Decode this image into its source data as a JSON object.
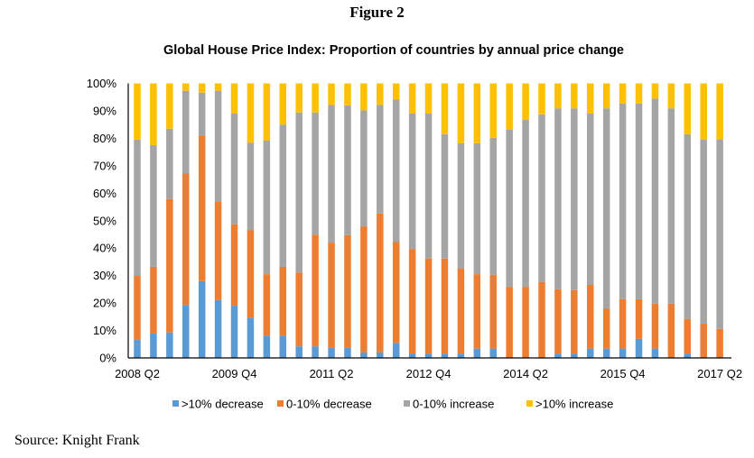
{
  "figure_label": "Figure 2",
  "source": "Source: Knight Frank",
  "chart_data": {
    "type": "bar",
    "stacked": true,
    "percent_stacked": true,
    "title": "Global House Price Index: Proportion of countries by annual price change",
    "xlabel": "",
    "ylabel": "",
    "ylim": [
      0,
      100
    ],
    "yticks": [
      "0%",
      "10%",
      "20%",
      "30%",
      "40%",
      "50%",
      "60%",
      "70%",
      "80%",
      "90%",
      "100%"
    ],
    "xtick_labels": [
      "2008 Q2",
      "2009 Q4",
      "2011 Q2",
      "2012 Q4",
      "2014 Q2",
      "2015 Q4",
      "2017 Q2"
    ],
    "grid": false,
    "legend_position": "bottom",
    "categories": [
      "2008 Q2",
      "2008 Q3",
      "2008 Q4",
      "2009 Q1",
      "2009 Q2",
      "2009 Q3",
      "2009 Q4",
      "2010 Q1",
      "2010 Q2",
      "2010 Q3",
      "2010 Q4",
      "2011 Q1",
      "2011 Q2",
      "2011 Q3",
      "2011 Q4",
      "2012 Q1",
      "2012 Q2",
      "2012 Q3",
      "2012 Q4",
      "2013 Q1",
      "2013 Q2",
      "2013 Q3",
      "2013 Q4",
      "2014 Q1",
      "2014 Q2",
      "2014 Q3",
      "2014 Q4",
      "2015 Q1",
      "2015 Q2",
      "2015 Q3",
      "2015 Q4",
      "2016 Q1",
      "2016 Q2",
      "2016 Q3",
      "2016 Q4",
      "2017 Q1",
      "2017 Q2"
    ],
    "series": [
      {
        "name": ">10% decrease",
        "color": "#5B9BD5",
        "values": [
          6.7,
          8.9,
          9.3,
          19.3,
          28,
          21.1,
          19,
          14.7,
          8.1,
          8.1,
          4.2,
          4.2,
          3.7,
          3.7,
          2,
          2,
          5.5,
          1.6,
          1.6,
          1.6,
          1.6,
          3.4,
          3.4,
          0,
          0,
          0,
          1.6,
          1.6,
          3.4,
          3.4,
          3.4,
          7,
          3.4,
          0,
          1.6,
          0,
          0
        ]
      },
      {
        "name": "0-10% decrease",
        "color": "#ED7D31",
        "values": [
          23.2,
          24.3,
          48.6,
          48,
          53,
          35.7,
          29.7,
          31.9,
          22.4,
          25.1,
          26.9,
          40.7,
          38.3,
          41,
          46,
          50.6,
          36.7,
          38.1,
          34.6,
          34.6,
          30.9,
          27.1,
          26.9,
          25.9,
          25.9,
          27.7,
          23.4,
          23.1,
          23.2,
          14.5,
          18,
          14.4,
          16.4,
          19.8,
          12.6,
          12.5,
          10.6
        ]
      },
      {
        "name": "0-10% increase",
        "color": "#A5A5A5",
        "values": [
          49.6,
          44.3,
          25.6,
          30,
          15.6,
          40.5,
          40.3,
          31.8,
          48.7,
          51.8,
          58.3,
          44.5,
          50.1,
          47.3,
          42.2,
          39.6,
          51.9,
          49.3,
          52.8,
          45.3,
          45.7,
          47.7,
          49.9,
          57.3,
          60.9,
          61,
          65.9,
          66.2,
          62.4,
          73,
          71.3,
          71.3,
          74.7,
          71.1,
          67.3,
          67.1,
          69
        ]
      },
      {
        "name": ">10% increase",
        "color": "#FFC000",
        "values": [
          20.5,
          22.5,
          16.5,
          2.7,
          3.4,
          2.7,
          11,
          21.6,
          20.8,
          15,
          10.6,
          10.6,
          7.9,
          8,
          9.8,
          7.8,
          5.9,
          11,
          11,
          18.5,
          21.8,
          21.8,
          19.8,
          16.8,
          13.2,
          11.3,
          9.1,
          9.1,
          11,
          9.1,
          7.3,
          7.3,
          5.5,
          9.1,
          18.5,
          20.4,
          20.4
        ]
      }
    ]
  }
}
